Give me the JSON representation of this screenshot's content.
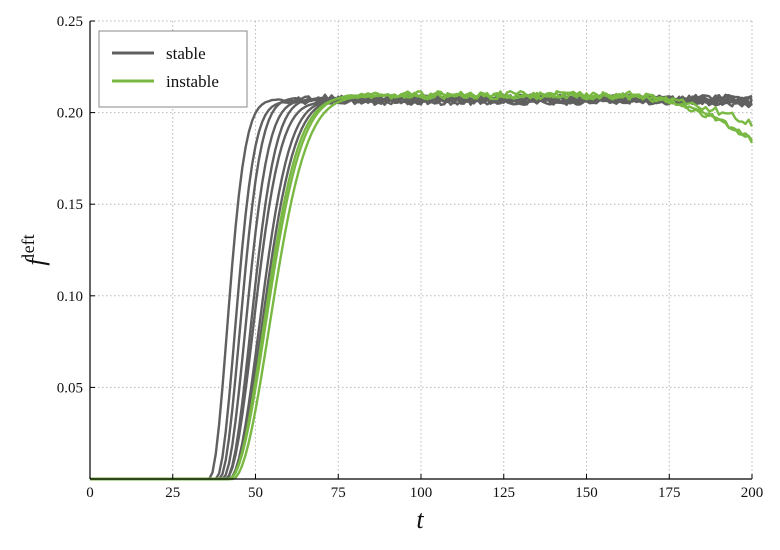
{
  "chart_data": {
    "type": "line",
    "title": "",
    "xlabel": "t",
    "ylabel": {
      "base": "f",
      "superscript": "left"
    },
    "xlim": [
      0,
      200
    ],
    "ylim": [
      0,
      0.25
    ],
    "xticks": [
      "0",
      "25",
      "50",
      "75",
      "100",
      "125",
      "150",
      "175",
      "200"
    ],
    "yticks": [
      "0.05",
      "0.10",
      "0.15",
      "0.20",
      "0.25"
    ],
    "grid": true,
    "legend": {
      "placement": "top-left",
      "entries": [
        {
          "label": "stable",
          "color": "#606060"
        },
        {
          "label": "instable",
          "color": "#78b843"
        }
      ]
    },
    "series": [
      {
        "group": "stable",
        "color": "#606060",
        "onset": 36,
        "rise": 5.4,
        "plateau": 0.207,
        "late_drop": 0
      },
      {
        "group": "stable",
        "color": "#606060",
        "onset": 38,
        "rise": 5.8,
        "plateau": 0.206,
        "late_drop": 0
      },
      {
        "group": "stable",
        "color": "#606060",
        "onset": 39,
        "rise": 6.3,
        "plateau": 0.208,
        "late_drop": 0
      },
      {
        "group": "stable",
        "color": "#606060",
        "onset": 40,
        "rise": 6.9,
        "plateau": 0.207,
        "late_drop": 0
      },
      {
        "group": "stable",
        "color": "#606060",
        "onset": 41,
        "rise": 7.5,
        "plateau": 0.208,
        "late_drop": 0.004
      },
      {
        "group": "stable",
        "color": "#606060",
        "onset": 41,
        "rise": 8.2,
        "plateau": 0.206,
        "late_drop": 0
      },
      {
        "group": "stable",
        "color": "#606060",
        "onset": 42,
        "rise": 9.0,
        "plateau": 0.207,
        "late_drop": 0.003
      },
      {
        "group": "stable",
        "color": "#606060",
        "onset": 42,
        "rise": 9.8,
        "plateau": 0.208,
        "late_drop": 0
      },
      {
        "group": "instable",
        "color": "#78b843",
        "onset": 42,
        "rise": 10.4,
        "plateau": 0.209,
        "late_drop": 0.024
      },
      {
        "group": "instable",
        "color": "#78b843",
        "onset": 42,
        "rise": 10.9,
        "plateau": 0.21,
        "late_drop": 0.025
      },
      {
        "group": "instable",
        "color": "#78b843",
        "onset": 43,
        "rise": 11.1,
        "plateau": 0.209,
        "late_drop": 0.015
      }
    ]
  }
}
